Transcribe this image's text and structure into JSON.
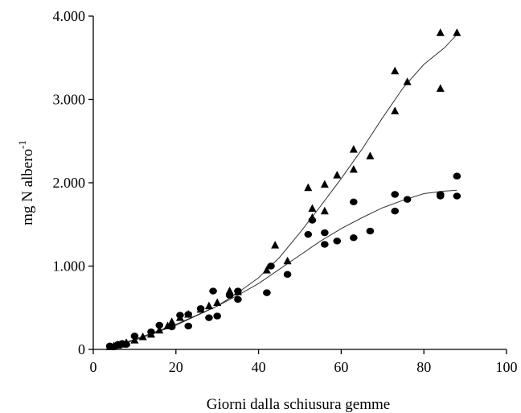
{
  "chart_data": {
    "type": "scatter",
    "xlabel": "Giorni dalla schiusura gemme",
    "ylabel": "mg N albero",
    "ylabel_superscript": "-1",
    "xlim": [
      0,
      100
    ],
    "ylim": [
      0,
      4000
    ],
    "x_ticks": [
      0,
      20,
      40,
      60,
      80,
      100
    ],
    "y_ticks": [
      0,
      1000,
      2000,
      3000,
      4000
    ],
    "y_tick_labels": [
      "0",
      "1.000",
      "2.000",
      "3.000",
      "4.000"
    ],
    "grid": false,
    "legend": "none",
    "series": [
      {
        "marker": "triangle",
        "color": "#000000",
        "points": [
          [
            4,
            30
          ],
          [
            5,
            40
          ],
          [
            6,
            50
          ],
          [
            7,
            60
          ],
          [
            8,
            80
          ],
          [
            10,
            110
          ],
          [
            12,
            150
          ],
          [
            14,
            180
          ],
          [
            16,
            230
          ],
          [
            18,
            280
          ],
          [
            19,
            330
          ],
          [
            21,
            380
          ],
          [
            23,
            420
          ],
          [
            26,
            480
          ],
          [
            28,
            520
          ],
          [
            30,
            560
          ],
          [
            33,
            700
          ],
          [
            35,
            690
          ],
          [
            42,
            950
          ],
          [
            44,
            1250
          ],
          [
            47,
            1060
          ],
          [
            52,
            1940
          ],
          [
            53,
            1690
          ],
          [
            53,
            1580
          ],
          [
            56,
            1980
          ],
          [
            56,
            1660
          ],
          [
            59,
            2090
          ],
          [
            63,
            2400
          ],
          [
            63,
            2160
          ],
          [
            67,
            2320
          ],
          [
            73,
            3340
          ],
          [
            73,
            2860
          ],
          [
            76,
            3210
          ],
          [
            84,
            3800
          ],
          [
            84,
            3130
          ],
          [
            88,
            3800
          ]
        ],
        "fit": [
          [
            4,
            20
          ],
          [
            10,
            110
          ],
          [
            20,
            290
          ],
          [
            30,
            520
          ],
          [
            35,
            680
          ],
          [
            40,
            860
          ],
          [
            45,
            1100
          ],
          [
            50,
            1400
          ],
          [
            55,
            1720
          ],
          [
            60,
            2050
          ],
          [
            65,
            2400
          ],
          [
            70,
            2780
          ],
          [
            75,
            3140
          ],
          [
            80,
            3420
          ],
          [
            85,
            3620
          ],
          [
            88,
            3780
          ]
        ]
      },
      {
        "marker": "circle",
        "color": "#000000",
        "points": [
          [
            4,
            40
          ],
          [
            5,
            30
          ],
          [
            6,
            60
          ],
          [
            7,
            70
          ],
          [
            8,
            60
          ],
          [
            10,
            160
          ],
          [
            14,
            210
          ],
          [
            16,
            290
          ],
          [
            19,
            270
          ],
          [
            21,
            410
          ],
          [
            23,
            420
          ],
          [
            23,
            280
          ],
          [
            26,
            490
          ],
          [
            28,
            380
          ],
          [
            29,
            700
          ],
          [
            30,
            400
          ],
          [
            33,
            650
          ],
          [
            35,
            700
          ],
          [
            35,
            600
          ],
          [
            42,
            680
          ],
          [
            43,
            1000
          ],
          [
            47,
            900
          ],
          [
            52,
            1380
          ],
          [
            53,
            1550
          ],
          [
            56,
            1400
          ],
          [
            56,
            1260
          ],
          [
            59,
            1300
          ],
          [
            63,
            1770
          ],
          [
            63,
            1340
          ],
          [
            67,
            1420
          ],
          [
            73,
            1860
          ],
          [
            73,
            1660
          ],
          [
            76,
            1800
          ],
          [
            84,
            1860
          ],
          [
            84,
            1840
          ],
          [
            88,
            2080
          ],
          [
            88,
            1840
          ]
        ],
        "fit": [
          [
            4,
            25
          ],
          [
            10,
            120
          ],
          [
            20,
            300
          ],
          [
            30,
            520
          ],
          [
            35,
            650
          ],
          [
            40,
            790
          ],
          [
            45,
            960
          ],
          [
            50,
            1130
          ],
          [
            55,
            1300
          ],
          [
            60,
            1450
          ],
          [
            65,
            1580
          ],
          [
            70,
            1700
          ],
          [
            75,
            1790
          ],
          [
            80,
            1870
          ],
          [
            85,
            1900
          ],
          [
            88,
            1910
          ]
        ]
      }
    ]
  }
}
